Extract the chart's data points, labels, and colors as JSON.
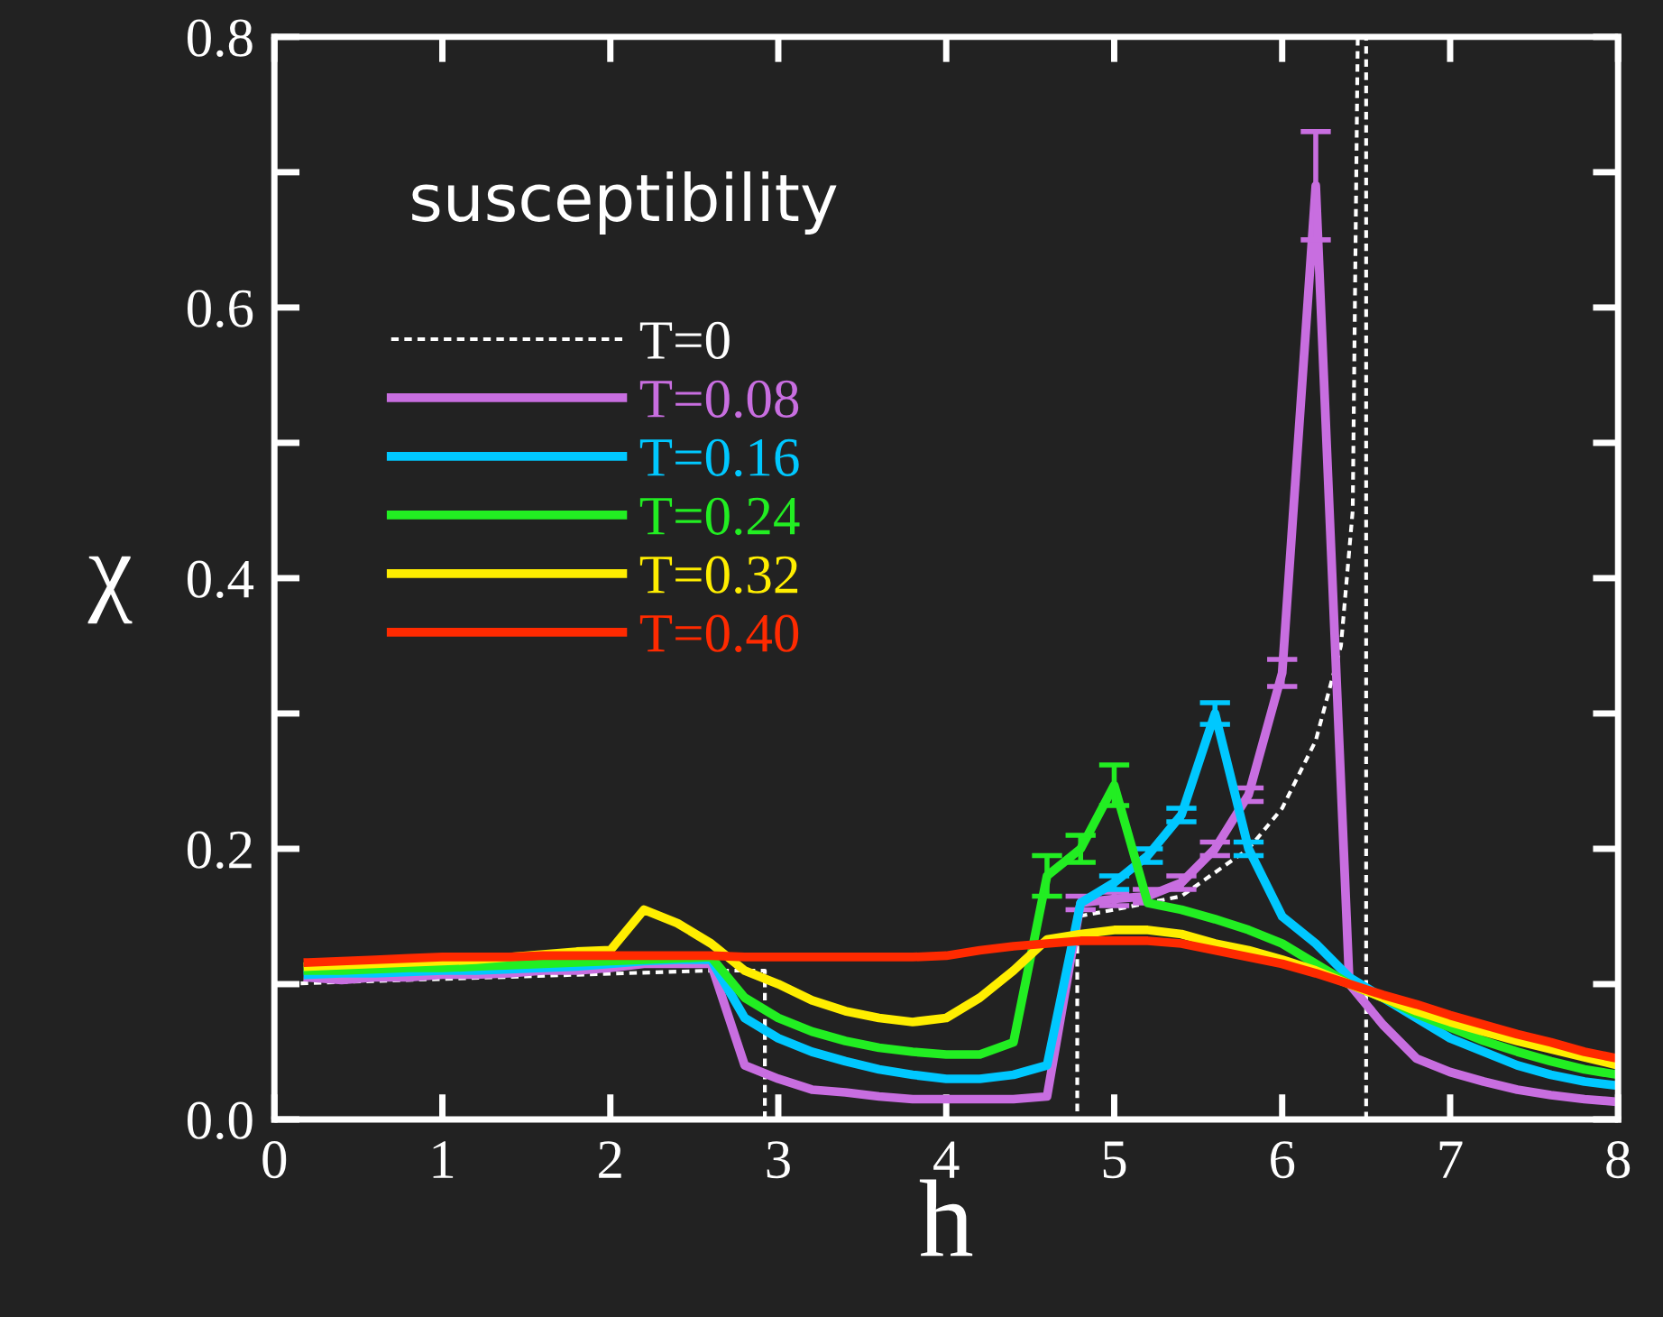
{
  "chart_data": {
    "type": "line",
    "xlabel": "h",
    "ylabel": "χ",
    "xlim": [
      0,
      8
    ],
    "ylim": [
      0,
      0.8
    ],
    "xticks": [
      0,
      1,
      2,
      3,
      4,
      5,
      6,
      7,
      8
    ],
    "yticks": [
      {
        "value": 0,
        "label": "0.0"
      },
      {
        "value": 0.1,
        "label": null
      },
      {
        "value": 0.2,
        "label": "0.2"
      },
      {
        "value": 0.3,
        "label": null
      },
      {
        "value": 0.4,
        "label": "0.4"
      },
      {
        "value": 0.5,
        "label": null
      },
      {
        "value": 0.6,
        "label": "0.6"
      },
      {
        "value": 0.7,
        "label": null
      },
      {
        "value": 0.8,
        "label": "0.8"
      }
    ],
    "annotations": [
      "susceptibility"
    ],
    "legend": "left",
    "grid": false,
    "marker": "none",
    "line_style": "solid",
    "x": [
      0.2,
      0.4,
      0.6,
      0.8,
      1.0,
      1.2,
      1.4,
      1.6,
      1.8,
      2.0,
      2.2,
      2.4,
      2.6,
      2.8,
      3.0,
      3.2,
      3.4,
      3.6,
      3.8,
      4.0,
      4.2,
      4.4,
      4.6,
      4.8,
      5.0,
      5.2,
      5.4,
      5.6,
      5.8,
      6.0,
      6.2,
      6.4,
      6.6,
      6.8,
      7.0,
      7.2,
      7.4,
      7.6,
      7.8,
      8.0
    ],
    "series": [
      {
        "name": "T=0",
        "color": "#ffffff",
        "line_style": "dotted",
        "x": [
          0,
          2.6,
          2.92,
          2.92,
          4.78,
          4.78,
          5.0,
          5.4,
          5.8,
          6.0,
          6.2,
          6.35,
          6.42,
          6.45,
          6.5,
          6.5
        ],
        "values": [
          0.1,
          0.11,
          0.11,
          0,
          0,
          0.15,
          0.155,
          0.165,
          0.2,
          0.23,
          0.28,
          0.35,
          0.45,
          0.8,
          0.8,
          0
        ]
      },
      {
        "name": "T=0.08",
        "color": "#c86ee0",
        "values": [
          0.105,
          0.103,
          0.105,
          0.105,
          0.107,
          0.107,
          0.108,
          0.11,
          0.11,
          0.112,
          0.115,
          0.115,
          0.115,
          0.04,
          0.03,
          0.022,
          0.02,
          0.017,
          0.015,
          0.015,
          0.015,
          0.015,
          0.017,
          0.16,
          0.163,
          0.165,
          0.175,
          0.2,
          0.24,
          0.33,
          0.69,
          0.1,
          0.07,
          0.045,
          0.035,
          0.028,
          0.022,
          0.018,
          0.015,
          0.013
        ],
        "errors": [
          null,
          null,
          null,
          null,
          null,
          null,
          null,
          null,
          null,
          null,
          null,
          null,
          null,
          null,
          null,
          null,
          null,
          null,
          null,
          null,
          null,
          null,
          null,
          0.005,
          0.005,
          0.005,
          0.005,
          0.005,
          0.005,
          0.01,
          0.04,
          null,
          null,
          null,
          null,
          null,
          null,
          null,
          null,
          null
        ]
      },
      {
        "name": "T=0.16",
        "color": "#00c8ff",
        "values": [
          0.107,
          0.108,
          0.108,
          0.109,
          0.11,
          0.11,
          0.111,
          0.112,
          0.113,
          0.115,
          0.117,
          0.118,
          0.118,
          0.075,
          0.06,
          0.05,
          0.043,
          0.037,
          0.033,
          0.03,
          0.03,
          0.033,
          0.04,
          0.16,
          0.175,
          0.195,
          0.225,
          0.3,
          0.2,
          0.15,
          0.13,
          0.105,
          0.09,
          0.075,
          0.06,
          0.05,
          0.04,
          0.033,
          0.028,
          0.025
        ],
        "errors": [
          null,
          null,
          null,
          null,
          null,
          null,
          null,
          null,
          null,
          null,
          null,
          null,
          null,
          null,
          null,
          null,
          null,
          null,
          null,
          null,
          null,
          null,
          null,
          null,
          0.005,
          0.005,
          0.005,
          0.008,
          0.005,
          null,
          null,
          null,
          null,
          null,
          null,
          null,
          null,
          null,
          null,
          null
        ]
      },
      {
        "name": "T=0.24",
        "color": "#22ee22",
        "values": [
          0.11,
          0.11,
          0.111,
          0.112,
          0.112,
          0.113,
          0.114,
          0.115,
          0.116,
          0.117,
          0.118,
          0.119,
          0.12,
          0.09,
          0.075,
          0.065,
          0.058,
          0.053,
          0.05,
          0.048,
          0.048,
          0.057,
          0.18,
          0.2,
          0.247,
          0.16,
          0.155,
          0.148,
          0.14,
          0.13,
          0.115,
          0.1,
          0.09,
          0.078,
          0.068,
          0.058,
          0.05,
          0.043,
          0.037,
          0.033
        ],
        "errors": [
          null,
          null,
          null,
          null,
          null,
          null,
          null,
          null,
          null,
          null,
          null,
          null,
          null,
          null,
          null,
          null,
          null,
          null,
          null,
          null,
          null,
          null,
          0.015,
          0.01,
          0.015,
          null,
          null,
          null,
          null,
          null,
          null,
          null,
          null,
          null,
          null,
          null,
          null,
          null,
          null,
          null
        ]
      },
      {
        "name": "T=0.32",
        "color": "#ffee00",
        "values": [
          0.113,
          0.114,
          0.115,
          0.116,
          0.117,
          0.118,
          0.12,
          0.122,
          0.124,
          0.125,
          0.155,
          0.145,
          0.13,
          0.11,
          0.1,
          0.088,
          0.08,
          0.075,
          0.072,
          0.075,
          0.09,
          0.11,
          0.133,
          0.137,
          0.14,
          0.14,
          0.137,
          0.13,
          0.125,
          0.118,
          0.11,
          0.1,
          0.09,
          0.08,
          0.072,
          0.065,
          0.058,
          0.052,
          0.046,
          0.04
        ]
      },
      {
        "name": "T=0.40",
        "color": "#ff2a00",
        "values": [
          0.116,
          0.117,
          0.118,
          0.119,
          0.12,
          0.12,
          0.12,
          0.121,
          0.121,
          0.121,
          0.121,
          0.121,
          0.121,
          0.12,
          0.12,
          0.12,
          0.12,
          0.12,
          0.12,
          0.121,
          0.125,
          0.128,
          0.13,
          0.132,
          0.132,
          0.132,
          0.13,
          0.125,
          0.12,
          0.115,
          0.108,
          0.1,
          0.092,
          0.085,
          0.077,
          0.07,
          0.063,
          0.057,
          0.05,
          0.045
        ]
      }
    ]
  }
}
